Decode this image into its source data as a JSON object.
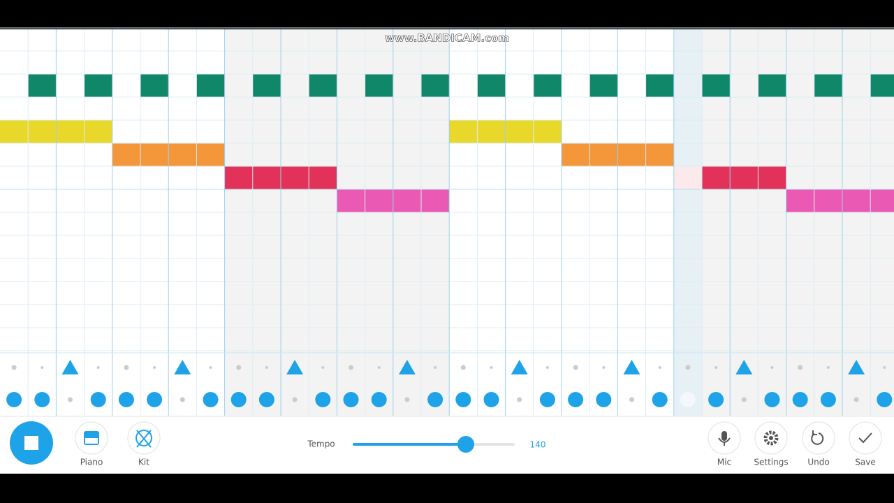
{
  "watermark": "www.BANDICAM.com",
  "toolbar": {
    "piano": "Piano",
    "kit": "Kit",
    "tempo_label": "Tempo",
    "tempo_value": "140",
    "mic": "Mic",
    "settings": "Settings",
    "undo": "Undo",
    "save": "Save"
  }
}
